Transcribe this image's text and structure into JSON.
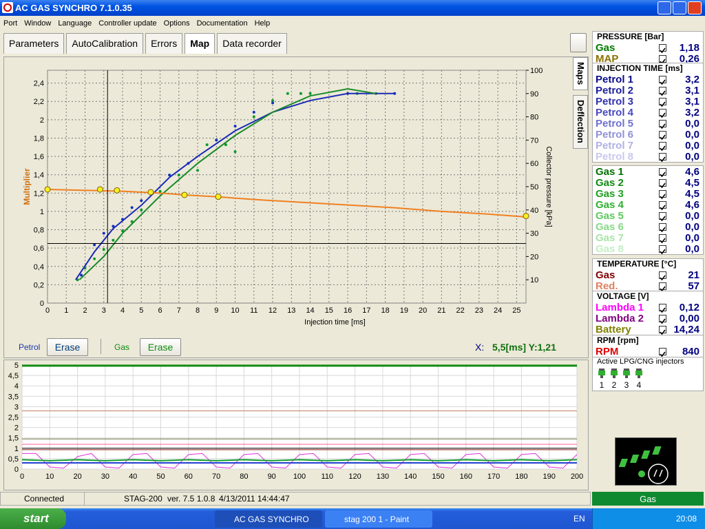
{
  "window": {
    "title": "AC GAS SYNCHRO  7.1.0.35"
  },
  "menu": [
    "Port",
    "Window",
    "Language",
    "Controller update",
    "Options",
    "Documentation",
    "Help"
  ],
  "tabs": [
    "Parameters",
    "AutoCalibration",
    "Errors",
    "Map",
    "Data recorder"
  ],
  "side_tabs": [
    "Maps",
    "Deflection"
  ],
  "map_legend": {
    "petrol": "Petrol",
    "gas": "Gas",
    "erase": "Erase"
  },
  "readout": {
    "label": "X:",
    "value": "5,5[ms] Y:1,21"
  },
  "chart_data": [
    {
      "type": "line",
      "xlabel": "Injection time [ms]",
      "ylabel": "Multiplier",
      "y2label": "Collector pressure [kPa]",
      "xlim": [
        0,
        25.5
      ],
      "xticks": [
        0,
        1,
        2,
        3,
        4,
        5,
        6,
        7,
        8,
        9,
        10,
        11,
        12,
        13,
        14,
        15,
        16,
        17,
        18,
        19,
        20,
        21,
        22,
        23,
        24,
        25
      ],
      "ylim": [
        0,
        2.54
      ],
      "yticks": [
        0,
        {
          "value": 0.2,
          "label": "0,2"
        },
        {
          "value": 0.4,
          "label": "0,4"
        },
        {
          "value": 0.6,
          "label": "0,6"
        },
        {
          "value": 0.8,
          "label": "0,8"
        },
        1,
        {
          "value": 1.2,
          "label": "1,2"
        },
        {
          "value": 1.4,
          "label": "1,4"
        },
        {
          "value": 1.6,
          "label": "1,6"
        },
        {
          "value": 1.8,
          "label": "1,8"
        },
        2,
        {
          "value": 2.2,
          "label": "2,2"
        },
        {
          "value": 2.4,
          "label": "2,4"
        }
      ],
      "y2lim": [
        0,
        100
      ],
      "y2ticks": [
        10,
        20,
        30,
        40,
        50,
        60,
        70,
        80,
        90,
        100
      ],
      "grid": true,
      "cursor": {
        "x": 3.2,
        "y": 0.65
      },
      "series": [
        {
          "type": "scatter",
          "color": "#0a9a2a",
          "axis": "y2",
          "x": [
            1.6,
            2,
            2.5,
            3,
            3.5,
            4,
            4.5,
            5,
            6,
            7,
            8,
            8.5,
            9,
            9.5,
            10,
            11,
            12,
            12.8,
            13.5,
            14,
            16.5,
            17.5
          ],
          "values": [
            10,
            15,
            19,
            23,
            27,
            31,
            35,
            40,
            48,
            55,
            57,
            68,
            70,
            68,
            65,
            80,
            87,
            90,
            90,
            90,
            90,
            90
          ]
        },
        {
          "type": "scatter",
          "color": "#1030c0",
          "axis": "y2",
          "x": [
            1.8,
            2.5,
            3,
            3.5,
            4,
            4.5,
            5,
            5.5,
            6.5,
            7.5,
            9,
            10,
            11,
            12,
            16,
            18.5
          ],
          "values": [
            12,
            25,
            30,
            33,
            36,
            41,
            44,
            47,
            55,
            60,
            70,
            76,
            82,
            86,
            90,
            90
          ]
        },
        {
          "type": "line",
          "color": "#1a2ab8",
          "axis": "y2",
          "x": [
            1.5,
            2.5,
            3.5,
            5,
            6.5,
            8,
            10,
            12,
            14,
            16,
            18.5
          ],
          "values": [
            10,
            22,
            32,
            42,
            54,
            63,
            74,
            82,
            87,
            90,
            90
          ]
        },
        {
          "type": "line",
          "color": "#1a8a2a",
          "axis": "y2",
          "x": [
            1.7,
            3,
            4,
            6,
            8,
            10,
            12,
            14,
            16,
            17.5
          ],
          "values": [
            10,
            20,
            30,
            46,
            60,
            72,
            82,
            89,
            92,
            90
          ]
        },
        {
          "type": "line",
          "color": "#f08020",
          "x": [
            0,
            2,
            4,
            6,
            7.3,
            9,
            11,
            13.5,
            16,
            18.5,
            21,
            23.5,
            25.5
          ],
          "values": [
            1.24,
            1.23,
            1.22,
            1.2,
            1.18,
            1.16,
            1.13,
            1.1,
            1.07,
            1.04,
            1.0,
            0.97,
            0.94
          ]
        },
        {
          "type": "scatter",
          "color": "#f8f020",
          "size": 4,
          "x": [
            0,
            2.8,
            3.7,
            5.5,
            7.3,
            9.1,
            25.5
          ],
          "values": [
            1.24,
            1.24,
            1.23,
            1.21,
            1.18,
            1.16,
            0.95
          ]
        }
      ]
    },
    {
      "type": "line",
      "xlim": [
        0,
        200
      ],
      "xticks": [
        0,
        10,
        20,
        30,
        40,
        50,
        60,
        70,
        80,
        90,
        100,
        110,
        120,
        130,
        140,
        150,
        160,
        170,
        180,
        190,
        200
      ],
      "ylim": [
        0,
        5
      ],
      "yticks": [
        0,
        {
          "value": 0.5,
          "label": "0,5"
        },
        1,
        {
          "value": 1.5,
          "label": "1,5"
        },
        2,
        {
          "value": 2.5,
          "label": "2,5"
        },
        3,
        {
          "value": 3.5,
          "label": "3,5"
        },
        4,
        {
          "value": 4.5,
          "label": "4,5"
        },
        5
      ],
      "grid": true,
      "series": [
        {
          "color": "#108a10",
          "width": 3,
          "x": [
            0,
            200
          ],
          "values": [
            4.97,
            4.97
          ]
        },
        {
          "color": "#c08060",
          "width": 1,
          "x": [
            0,
            200
          ],
          "values": [
            2.8,
            2.8
          ]
        },
        {
          "color": "#707040",
          "width": 1,
          "x": [
            0,
            200
          ],
          "values": [
            1.45,
            1.45
          ]
        },
        {
          "color": "#ff6090",
          "width": 1,
          "x": [
            0,
            200
          ],
          "values": [
            1.19,
            1.19
          ]
        },
        {
          "color": "#000000",
          "width": 1,
          "x": [
            0,
            200
          ],
          "values": [
            1.0,
            1.0
          ]
        },
        {
          "color": "#8a1010",
          "width": 1,
          "x": [
            0,
            200
          ],
          "values": [
            0.93,
            0.93
          ]
        },
        {
          "color": "#e030e0",
          "width": 1,
          "x": [
            0,
            5,
            10,
            15,
            20,
            25,
            30,
            35,
            40,
            45,
            50,
            55,
            60,
            65,
            70,
            75,
            80,
            85,
            90,
            95,
            100,
            105,
            110,
            115,
            120,
            125,
            130,
            135,
            140,
            145,
            150,
            155,
            160,
            165,
            170,
            175,
            180,
            185,
            190,
            195,
            200
          ],
          "values": [
            0.75,
            0.75,
            0.1,
            0.05,
            0.6,
            0.75,
            0.1,
            0.05,
            0.7,
            0.75,
            0.1,
            0.05,
            0.7,
            0.75,
            0.1,
            0.05,
            0.7,
            0.75,
            0.1,
            0.05,
            0.7,
            0.75,
            0.1,
            0.05,
            0.7,
            0.75,
            0.1,
            0.05,
            0.7,
            0.75,
            0.1,
            0.05,
            0.7,
            0.75,
            0.1,
            0.05,
            0.7,
            0.75,
            0.1,
            0.05,
            0.7
          ]
        },
        {
          "color": "#10a030",
          "width": 2,
          "x": [
            0,
            10,
            20,
            30,
            40,
            50,
            60,
            70,
            80,
            90,
            100,
            110,
            120,
            130,
            140,
            150,
            160,
            170,
            180,
            190,
            200
          ],
          "values": [
            0.45,
            0.4,
            0.45,
            0.4,
            0.45,
            0.4,
            0.45,
            0.4,
            0.45,
            0.4,
            0.45,
            0.4,
            0.45,
            0.4,
            0.45,
            0.4,
            0.45,
            0.4,
            0.45,
            0.4,
            0.45
          ]
        },
        {
          "color": "#2040d0",
          "width": 2,
          "x": [
            0,
            200
          ],
          "values": [
            0.3,
            0.3
          ]
        }
      ]
    }
  ],
  "panel": {
    "sections": [
      {
        "title": "PRESSURE [Bar]",
        "rows": [
          {
            "label": "Gas",
            "value": "1,18",
            "color": "#007a00"
          },
          {
            "label": "MAP",
            "value": "0,26",
            "color": "#8a7000"
          }
        ]
      },
      {
        "title": "INJECTION TIME [ms]",
        "rows": [
          {
            "label": "Petrol 1",
            "value": "3,2",
            "color": "#0a0a8a"
          },
          {
            "label": "Petrol 2",
            "value": "3,1",
            "color": "#1c1c9c"
          },
          {
            "label": "Petrol 3",
            "value": "3,1",
            "color": "#3030b0"
          },
          {
            "label": "Petrol 4",
            "value": "3,2",
            "color": "#4848c0"
          },
          {
            "label": "Petrol 5",
            "value": "0,0",
            "color": "#7070d0"
          },
          {
            "label": "Petrol 6",
            "value": "0,0",
            "color": "#9090d8"
          },
          {
            "label": "Petrol 7",
            "value": "0,0",
            "color": "#b0b0e4"
          },
          {
            "label": "Petrol 8",
            "value": "0,0",
            "color": "#c8c8ee"
          }
        ]
      },
      {
        "rows": [
          {
            "label": "Gas 1",
            "value": "4,6",
            "color": "#007000"
          },
          {
            "label": "Gas 2",
            "value": "4,5",
            "color": "#108a10"
          },
          {
            "label": "Gas 3",
            "value": "4,5",
            "color": "#20a020"
          },
          {
            "label": "Gas 4",
            "value": "4,6",
            "color": "#30b030"
          },
          {
            "label": "Gas 5",
            "value": "0,0",
            "color": "#60c860"
          },
          {
            "label": "Gas 6",
            "value": "0,0",
            "color": "#88d888"
          },
          {
            "label": "Gas 7",
            "value": "0,0",
            "color": "#a8e4a8"
          },
          {
            "label": "Gas 8",
            "value": "0,0",
            "color": "#c4eec4"
          }
        ]
      },
      {
        "title": "TEMPERATURE [°C]",
        "rows": [
          {
            "label": "Gas",
            "value": "21",
            "color": "#800000"
          },
          {
            "label": "Red.",
            "value": "57",
            "color": "#e08060"
          }
        ]
      },
      {
        "title": "VOLTAGE [V]",
        "rows": [
          {
            "label": "Lambda 1",
            "value": "0,12",
            "color": "#ff00ff"
          },
          {
            "label": "Lambda 2",
            "value": "0,00",
            "color": "#800080"
          },
          {
            "label": "Battery",
            "value": "14,24",
            "color": "#808000"
          }
        ]
      },
      {
        "title": "RPM [rpm]",
        "rows": [
          {
            "label": "RPM",
            "value": "840",
            "color": "#e00000"
          }
        ]
      }
    ]
  },
  "injectors": {
    "title": "Active LPG/CNG injectors",
    "labels": [
      "1",
      "2",
      "3",
      "4"
    ]
  },
  "gas_status": "Gas",
  "statusbar": [
    "Connected",
    "STAG-200",
    "ver. 7.5  1.0.8",
    "4/13/2011 14:44:47"
  ],
  "taskbar": {
    "start": "start",
    "tasks": [
      "AC GAS SYNCHRO",
      "stag 200 1 - Paint"
    ],
    "lang": "EN",
    "clock": "20:08"
  }
}
